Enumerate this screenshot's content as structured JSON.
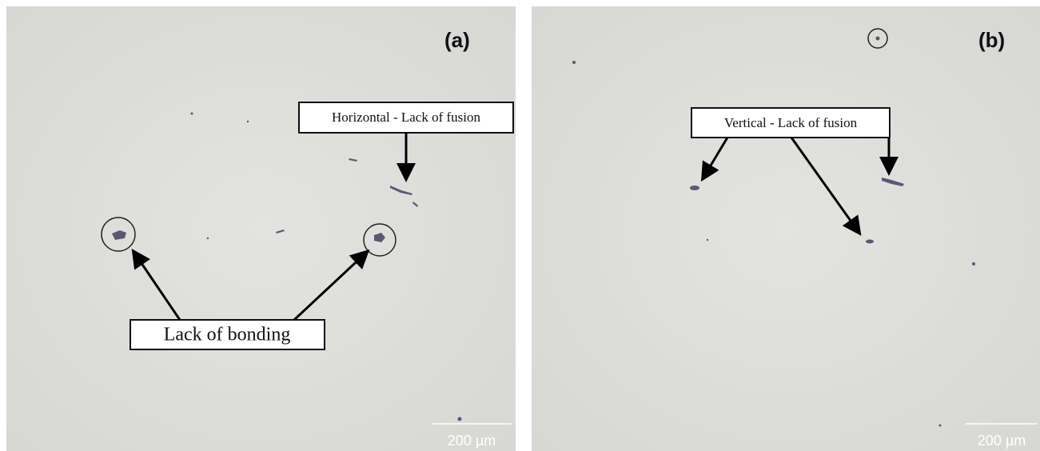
{
  "panels": [
    {
      "label": "(a)",
      "scale_bar": "200 µm",
      "annotations": [
        "Horizontal - Lack of fusion",
        "Lack of bonding"
      ]
    },
    {
      "label": "(b)",
      "scale_bar": "200 µm",
      "annotations": [
        "Vertical - Lack of fusion"
      ]
    }
  ]
}
